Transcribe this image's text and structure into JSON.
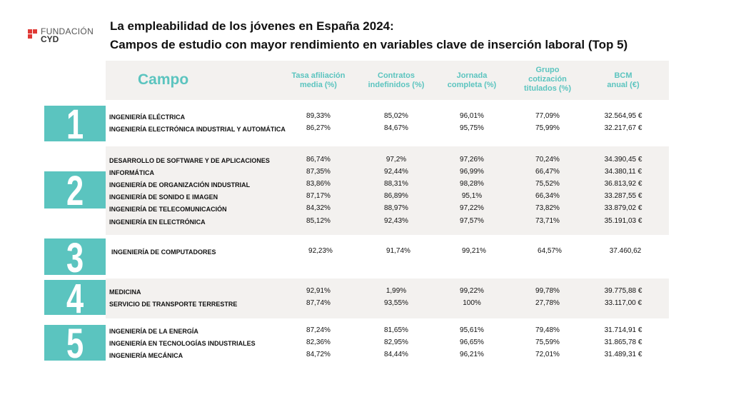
{
  "logo": {
    "line1": "FUNDACIÓN",
    "line2": "CYD"
  },
  "title": {
    "line1": "La empleabilidad de los jóvenes en España 2024:",
    "line2": "Campos de estudio con mayor rendimiento en variables clave de inserción laboral (Top 5)"
  },
  "colors": {
    "accent": "#5bc4bf",
    "band": "#f3f1ef",
    "logo": "#e03a36"
  },
  "header": {
    "campo": "Campo",
    "columns": [
      "Tasa afiliación\nmedia (%)",
      "Contratos\nindefinidos (%)",
      "Jornada\ncompleta (%)",
      "Grupo\ncotización\ntitulados (%)",
      "BCM\nanual (€)"
    ]
  },
  "groups": [
    {
      "rank": "1",
      "rows": [
        [
          "INGENIERÍA ELÉCTRICA",
          "89,33%",
          "85,02%",
          "96,01%",
          "77,09%",
          "32.564,95 €"
        ],
        [
          "INGENIERÍA ELECTRÓNICA INDUSTRIAL Y AUTOMÁTICA",
          "86,27%",
          "84,67%",
          "95,75%",
          "75,99%",
          "32.217,67 €"
        ]
      ]
    },
    {
      "rank": "2",
      "rows": [
        [
          "DESARROLLO DE SOFTWARE Y DE APLICACIONES",
          "86,74%",
          "97,2%",
          "97,26%",
          "70,24%",
          "34.390,45 €"
        ],
        [
          "INFORMÁTICA",
          "87,35%",
          "92,44%",
          "96,99%",
          "66,47%",
          "34.380,11 €"
        ],
        [
          "INGENIERÍA DE ORGANIZACIÓN INDUSTRIAL",
          "83,86%",
          "88,31%",
          "98,28%",
          "75,52%",
          "36.813,92 €"
        ],
        [
          "INGENIERÍA DE SONIDO E IMAGEN",
          "87,17%",
          "86,89%",
          "95,1%",
          "66,34%",
          "33.287,55 €"
        ],
        [
          "INGENIERÍA DE TELECOMUNICACIÓN",
          "84,32%",
          "88,97%",
          "97,22%",
          "73,82%",
          "33.879,02 €"
        ],
        [
          "INGENIERÍA EN ELECTRÓNICA",
          "85,12%",
          "92,43%",
          "97,57%",
          "73,71%",
          "35.191,03 €"
        ]
      ]
    },
    {
      "rank": "3",
      "rows": [
        [
          "INGENIERÍA DE COMPUTADORES",
          "92,23%",
          "91,74%",
          "99,21%",
          "64,57%",
          "37.460,62"
        ]
      ]
    },
    {
      "rank": "4",
      "rows": [
        [
          "MEDICINA",
          "92,91%",
          "1,99%",
          "99,22%",
          "99,78%",
          "39.775,88 €"
        ],
        [
          "SERVICIO DE TRANSPORTE TERRESTRE",
          "87,74%",
          "93,55%",
          "100%",
          "27,78%",
          "33.117,00 €"
        ]
      ]
    },
    {
      "rank": "5",
      "rows": [
        [
          "INGENIERÍA DE LA ENERGÍA",
          "87,24%",
          "81,65%",
          "95,61%",
          "79,48%",
          "31.714,91 €"
        ],
        [
          "INGENIERÍA EN TECNOLOGÍAS INDUSTRIALES",
          "82,36%",
          "82,95%",
          "96,65%",
          "75,59%",
          "31.865,78 €"
        ],
        [
          "INGENIERÍA MECÁNICA",
          "84,72%",
          "84,44%",
          "96,21%",
          "72,01%",
          "31.489,31 €"
        ]
      ]
    }
  ]
}
